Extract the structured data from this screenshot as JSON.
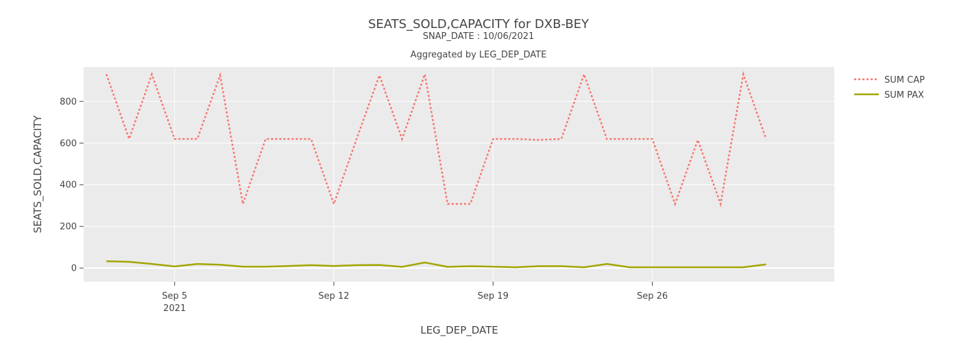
{
  "chart_data": {
    "type": "line",
    "title": "SEATS_SOLD,CAPACITY for DXB-BEY",
    "subtitle": "SNAP_DATE : 10/06/2021",
    "subtitle2": "Aggregated by LEG_DEP_DATE",
    "xlabel": "LEG_DEP_DATE",
    "ylabel": "SEATS_SOLD,CAPACITY",
    "xlim": [
      "2021-09-01",
      "2021-10-04"
    ],
    "ylim": [
      -65,
      965
    ],
    "yticks": [
      0,
      200,
      400,
      600,
      800
    ],
    "xticks": [
      {
        "date": "2021-09-05",
        "label": "Sep 5",
        "sublabel": "2021"
      },
      {
        "date": "2021-09-12",
        "label": "Sep 12",
        "sublabel": ""
      },
      {
        "date": "2021-09-19",
        "label": "Sep 19",
        "sublabel": ""
      },
      {
        "date": "2021-09-26",
        "label": "Sep 26",
        "sublabel": ""
      }
    ],
    "grid": true,
    "legend_position": "top-right",
    "x": [
      "2021-09-02",
      "2021-09-03",
      "2021-09-04",
      "2021-09-05",
      "2021-09-06",
      "2021-09-07",
      "2021-09-08",
      "2021-09-09",
      "2021-09-10",
      "2021-09-11",
      "2021-09-12",
      "2021-09-13",
      "2021-09-14",
      "2021-09-15",
      "2021-09-16",
      "2021-09-17",
      "2021-09-18",
      "2021-09-19",
      "2021-09-20",
      "2021-09-21",
      "2021-09-22",
      "2021-09-23",
      "2021-09-24",
      "2021-09-25",
      "2021-09-26",
      "2021-09-27",
      "2021-09-28",
      "2021-09-29",
      "2021-09-30",
      "2021-10-01"
    ],
    "series": [
      {
        "name": "SUM CAP",
        "color": "#F8766D",
        "dash": "dotted",
        "values": [
          930,
          620,
          930,
          620,
          620,
          925,
          308,
          620,
          620,
          620,
          308,
          620,
          925,
          620,
          930,
          308,
          308,
          620,
          620,
          615,
          620,
          930,
          620,
          620,
          620,
          308,
          615,
          308,
          930,
          620
        ]
      },
      {
        "name": "SUM PAX",
        "color": "#A3A500",
        "dash": "solid",
        "values": [
          33,
          30,
          20,
          8,
          20,
          16,
          7,
          7,
          10,
          14,
          10,
          14,
          15,
          6,
          27,
          6,
          9,
          7,
          4,
          9,
          9,
          4,
          20,
          4,
          4,
          4,
          4,
          4,
          4,
          18
        ]
      }
    ]
  }
}
